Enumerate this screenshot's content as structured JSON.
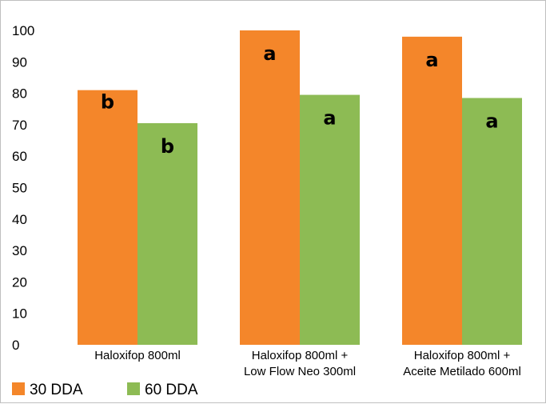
{
  "chart_data": {
    "type": "bar",
    "categories": [
      [
        "Haloxifop 800ml"
      ],
      [
        "Haloxifop 800ml +",
        "Low Flow Neo 300ml"
      ],
      [
        "Haloxifop 800ml +",
        "Aceite Metilado 600ml"
      ]
    ],
    "series": [
      {
        "name": "30 DDA",
        "color": "#f4862a",
        "values": [
          81,
          100,
          98
        ],
        "labels": [
          "b",
          "a",
          "a"
        ]
      },
      {
        "name": "60 DDA",
        "color": "#8dbb54",
        "values": [
          70.5,
          79.5,
          78.5
        ],
        "labels": [
          "b",
          "a",
          "a"
        ]
      }
    ],
    "title": "",
    "xlabel": "",
    "ylabel": "",
    "ylim": [
      0,
      100
    ],
    "yticks": [
      0,
      10,
      20,
      30,
      40,
      50,
      60,
      70,
      80,
      90,
      100
    ],
    "grid": false,
    "legend_position": "bottom-left"
  }
}
